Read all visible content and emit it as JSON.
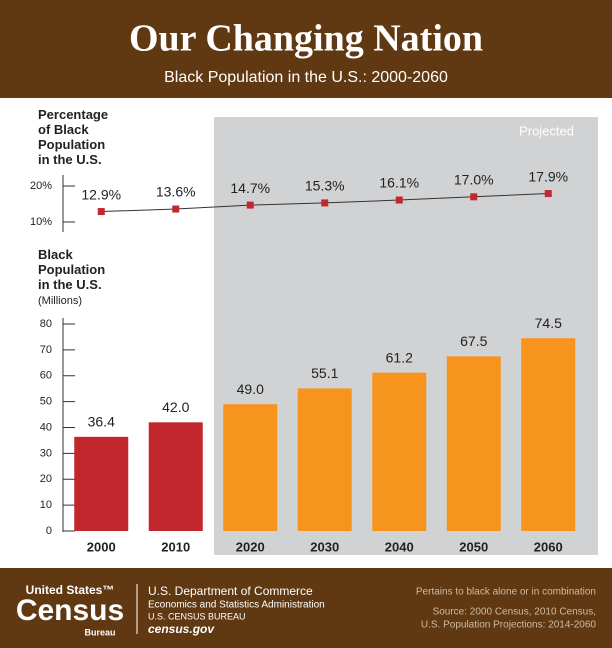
{
  "header": {
    "title": "Our Changing Nation",
    "subtitle": "Black Population in the U.S.: 2000-2060"
  },
  "annotation": "Projected",
  "chart_data": [
    {
      "type": "line",
      "title": "Percentage of Black Population in the U.S.",
      "values": [
        12.9,
        13.6,
        14.7,
        15.3,
        16.1,
        17.0,
        17.9
      ],
      "value_labels": [
        "12.9%",
        "13.6%",
        "14.7%",
        "15.3%",
        "16.1%",
        "17.0%",
        "17.9%"
      ],
      "color": "#c1272d",
      "line_color": "#333333",
      "ylim": [
        8,
        24
      ],
      "yticks": [
        {
          "value": 10,
          "label": "10%"
        },
        {
          "value": 20,
          "label": "20%"
        }
      ]
    },
    {
      "type": "bar",
      "title": "Black Population in the U.S.",
      "y_label": "(Millions)",
      "categories": [
        "2000",
        "2010",
        "2020",
        "2030",
        "2040",
        "2050",
        "2060"
      ],
      "values": [
        36.4,
        42.0,
        49.0,
        55.1,
        61.2,
        67.5,
        74.5
      ],
      "value_labels": [
        "36.4",
        "42.0",
        "49.0",
        "55.1",
        "61.2",
        "67.5",
        "74.5"
      ],
      "colors": [
        "#c1272d",
        "#c1272d",
        "#f7941d",
        "#f7941d",
        "#f7941d",
        "#f7941d",
        "#f7941d"
      ],
      "ylim": [
        0,
        80
      ],
      "yticks": [
        0,
        10,
        20,
        30,
        40,
        50,
        60,
        70,
        80
      ]
    }
  ],
  "footer": {
    "logo_top": "United States™",
    "logo_main": "Census",
    "logo_bottom": "Bureau",
    "dept": "U.S. Department of Commerce",
    "admin": "Economics and Statistics Administration",
    "bureau": "U.S. CENSUS BUREAU",
    "site": "census.gov",
    "note": "Pertains to black alone or in combination",
    "source1": "Source: 2000 Census, 2010 Census,",
    "source2": "U.S. Population Projections: 2014-2060"
  }
}
